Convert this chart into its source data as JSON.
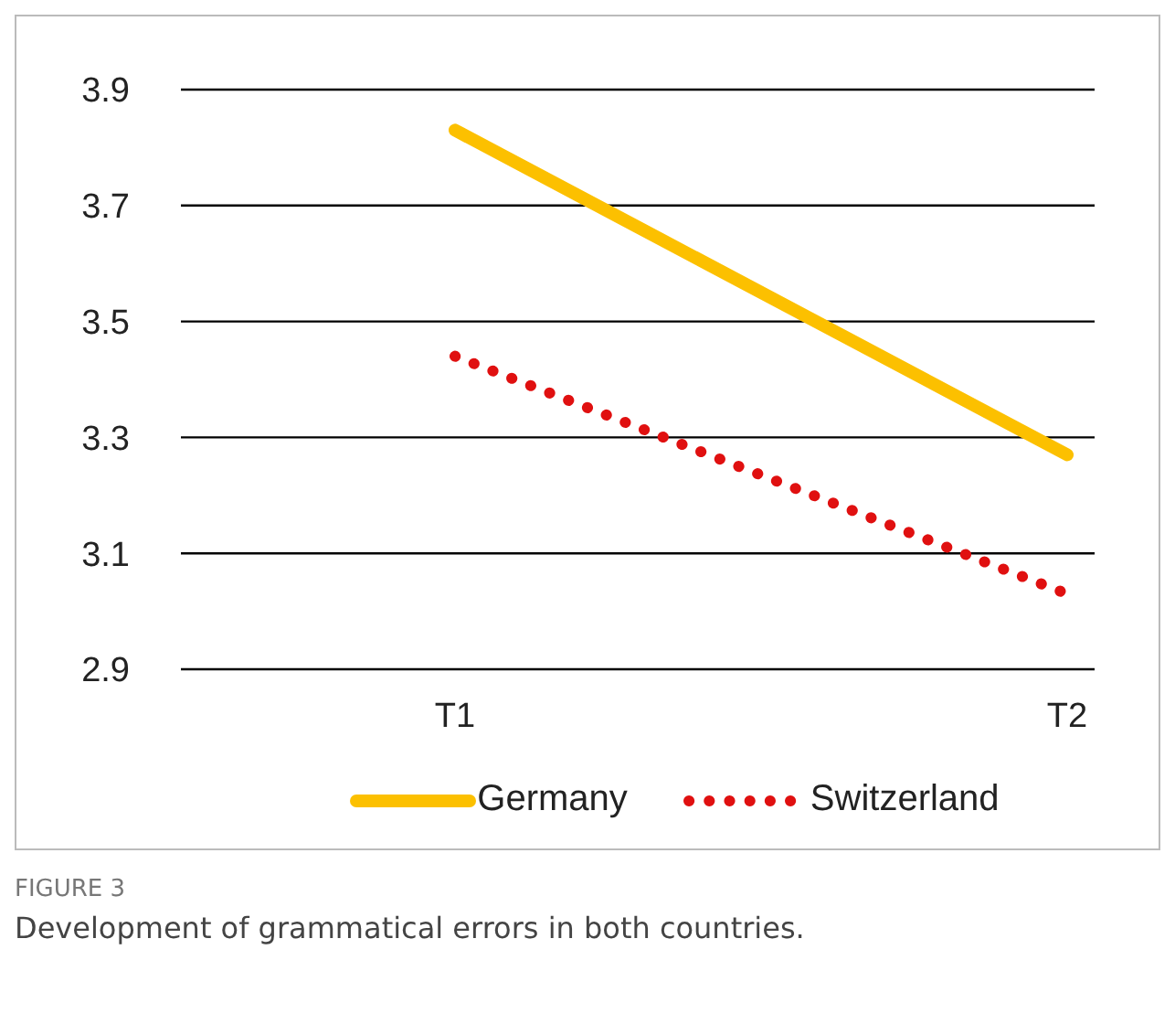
{
  "chart_data": {
    "type": "line",
    "categories": [
      "T1",
      "T2"
    ],
    "series": [
      {
        "name": "Germany",
        "color": "#fcc000",
        "values": [
          3.83,
          3.27
        ],
        "line_style": "solid"
      },
      {
        "name": "Switzerland",
        "color": "#e01010",
        "values": [
          3.44,
          3.03
        ],
        "line_style": "dotted"
      }
    ],
    "ylim": [
      2.9,
      3.9
    ],
    "yticks": [
      {
        "value": 2.9,
        "label": "2.9"
      },
      {
        "value": 3.1,
        "label": "3.1"
      },
      {
        "value": 3.3,
        "label": "3.3"
      },
      {
        "value": 3.5,
        "label": "3.5"
      },
      {
        "value": 3.7,
        "label": "3.7"
      },
      {
        "value": 3.9,
        "label": "3.9"
      }
    ],
    "grid": "y",
    "legend": "bottom",
    "marker": "none",
    "annotations": [
      "FIGURE 3",
      "Development of grammatical errors in both countries."
    ]
  }
}
